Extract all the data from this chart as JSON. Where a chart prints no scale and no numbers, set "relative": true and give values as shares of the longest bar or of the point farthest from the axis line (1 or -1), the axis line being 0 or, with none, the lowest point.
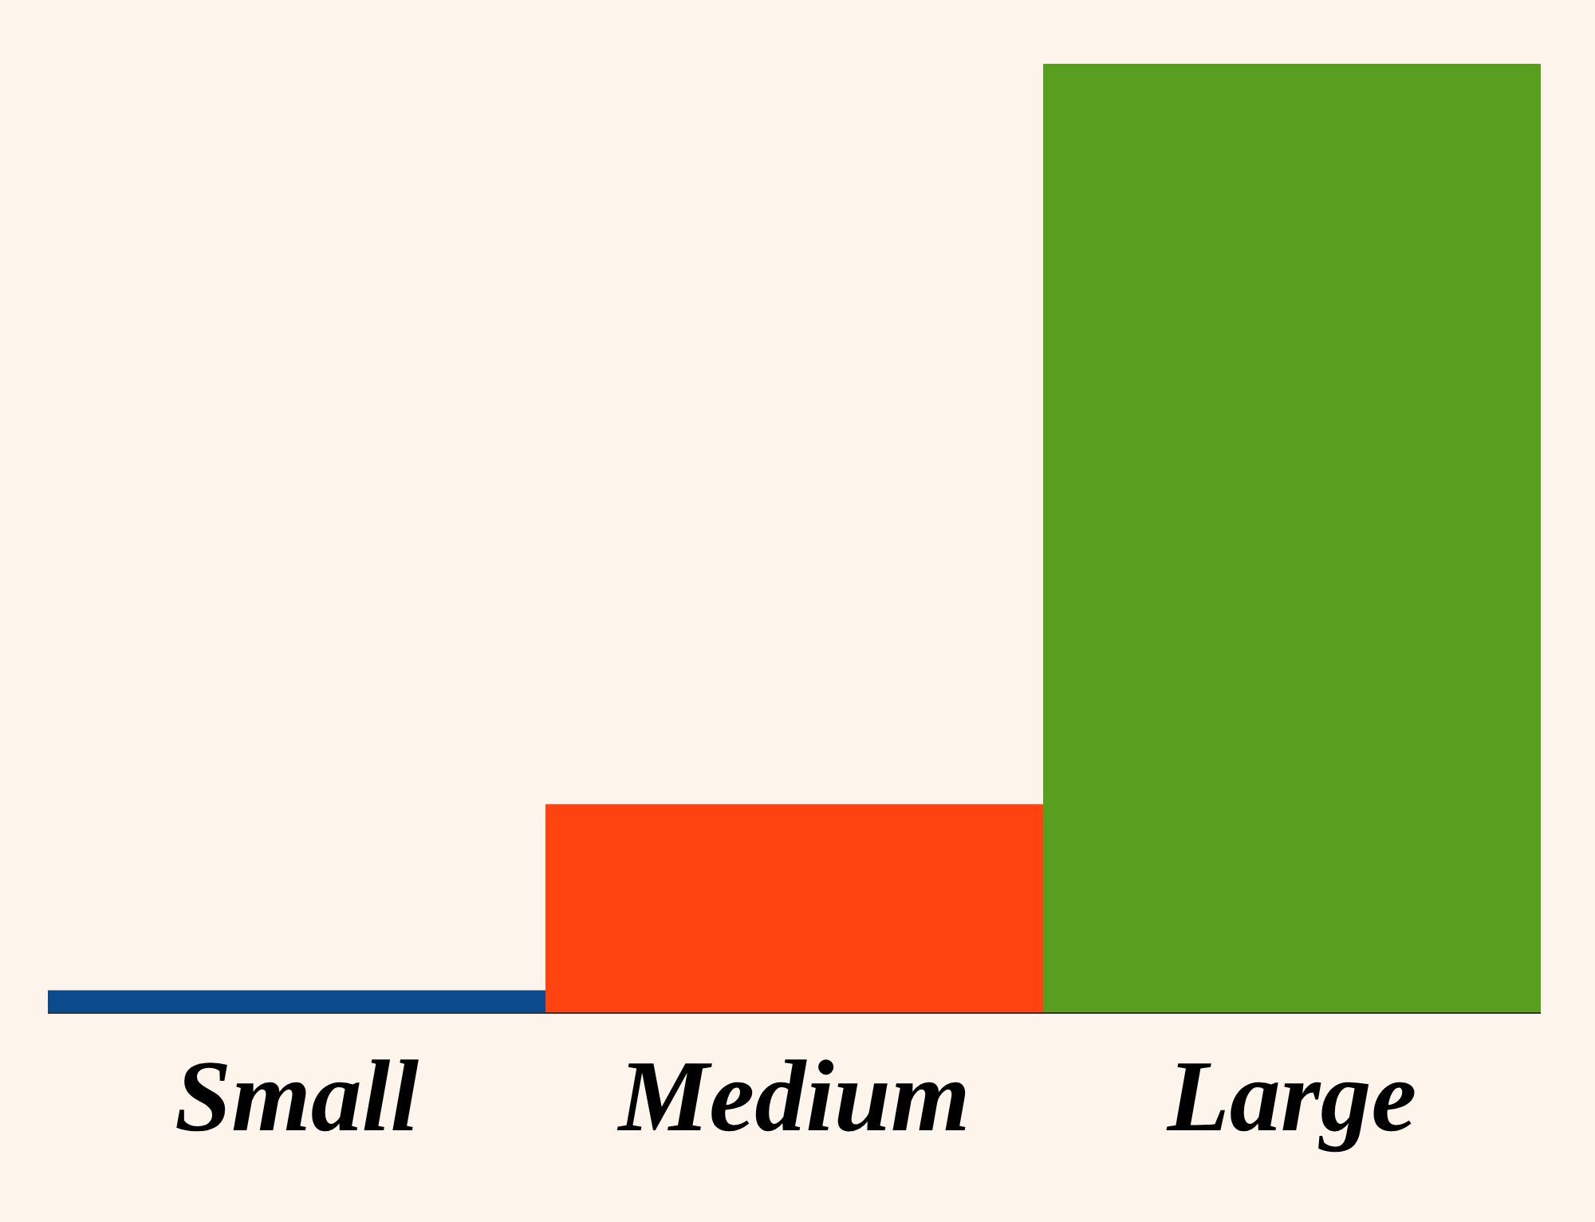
{
  "chart_data": {
    "type": "bar",
    "relative": true,
    "categories": [
      "Small",
      "Medium",
      "Large"
    ],
    "values": [
      0.024,
      0.22,
      1
    ],
    "colors": [
      "#0b4a8c",
      "#fe4311",
      "#589f1f"
    ]
  }
}
